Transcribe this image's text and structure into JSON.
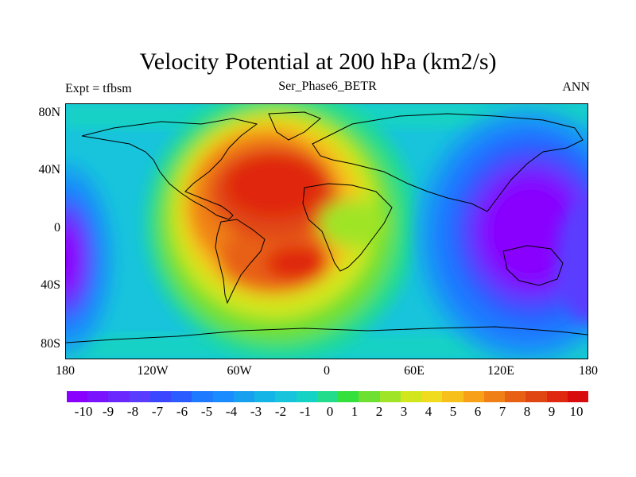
{
  "title": "Velocity Potential at 200 hPa (km2/s)",
  "subtitle_left": "Expt = tfbsm",
  "subtitle_center": "Ser_Phase6_BETR",
  "subtitle_right": "ANN",
  "lat_ticks": [
    "80N",
    "40N",
    "0",
    "40S",
    "80S"
  ],
  "lon_ticks": [
    "180",
    "120W",
    "60W",
    "0",
    "60E",
    "120E",
    "180"
  ],
  "colorbar": {
    "labels": [
      "-10",
      "-9",
      "-8",
      "-7",
      "-6",
      "-5",
      "-4",
      "-3",
      "-2",
      "-1",
      "0",
      "1",
      "2",
      "3",
      "4",
      "5",
      "6",
      "7",
      "8",
      "9",
      "10"
    ],
    "colors": [
      "#8a00ff",
      "#7a14ff",
      "#6a28ff",
      "#5a3cff",
      "#3a46ff",
      "#2a5cff",
      "#1e7aff",
      "#1a8cff",
      "#18a0f0",
      "#14b4e6",
      "#18c4dc",
      "#14d2c4",
      "#22dc8c",
      "#34e03c",
      "#6ee032",
      "#a0e428",
      "#d2e61e",
      "#f0dc1e",
      "#f8c01a",
      "#f8a018",
      "#f08016",
      "#e86014",
      "#e04612",
      "#e02810",
      "#d80c0c"
    ]
  },
  "chart_data": {
    "type": "heatmap",
    "title": "Velocity Potential at 200 hPa (km2/s)",
    "variable": "velocity potential",
    "units": "km2/s",
    "level": "200 hPa",
    "experiment": "tfbsm",
    "case": "Ser_Phase6_BETR",
    "season": "ANN",
    "xlim": [
      -180,
      180
    ],
    "ylim": [
      -90,
      90
    ],
    "x_ticks": [
      -180,
      -120,
      -60,
      0,
      60,
      120,
      180
    ],
    "y_ticks": [
      80,
      40,
      0,
      -40,
      -80
    ],
    "color_range": [
      -10,
      10
    ],
    "features": [
      {
        "name": "positive maximum over Atlantic/N Africa",
        "lon": -30,
        "lat": 25,
        "value": 10
      },
      {
        "name": "positive lobe S Atlantic",
        "lon": -20,
        "lat": -18,
        "value": 9
      },
      {
        "name": "negative minimum W Pacific/Maritime Continent",
        "lon": 140,
        "lat": 5,
        "value": -10
      },
      {
        "name": "negative lobe E Pacific",
        "lon": -180,
        "lat": -15,
        "value": -9
      }
    ]
  }
}
